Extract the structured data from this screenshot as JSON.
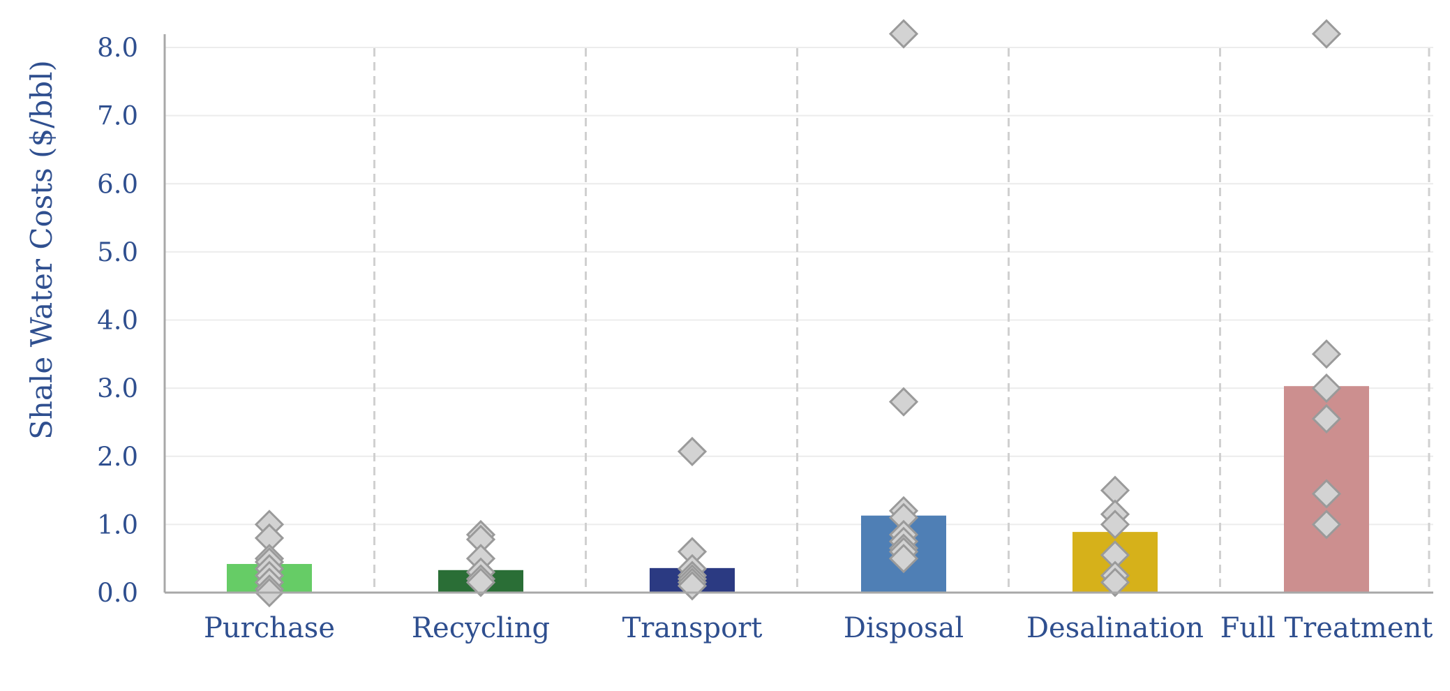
{
  "chart_data": {
    "type": "bar",
    "ylabel": "Shale Water Costs ($/bbl)",
    "xlabel": "",
    "ylim": [
      0,
      8.2
    ],
    "yticks": [
      0,
      1,
      2,
      3,
      4,
      5,
      6,
      7,
      8
    ],
    "ytick_labels": [
      "0.0",
      "1.0",
      "2.0",
      "3.0",
      "4.0",
      "5.0",
      "6.0",
      "7.0",
      "8.0"
    ],
    "grid": true,
    "categories": [
      "Purchase",
      "Recycling",
      "Transport",
      "Disposal",
      "Desalination",
      "Full Treatment"
    ],
    "values": [
      0.42,
      0.33,
      0.36,
      1.13,
      0.89,
      3.03
    ],
    "colors": [
      "#66cc66",
      "#2a6e36",
      "#2b3a82",
      "#4f7fb5",
      "#d6b11a",
      "#cc8f8f"
    ],
    "points": [
      [
        1.0,
        0.8,
        0.5,
        0.45,
        0.35,
        0.25,
        0.15,
        0.05,
        0.0
      ],
      [
        0.85,
        0.78,
        0.5,
        0.3,
        0.2,
        0.15
      ],
      [
        2.07,
        0.6,
        0.35,
        0.25,
        0.2,
        0.15,
        0.1
      ],
      [
        8.2,
        2.8,
        1.2,
        1.1,
        0.85,
        0.75,
        0.65,
        0.6,
        0.5
      ],
      [
        1.5,
        1.15,
        1.0,
        0.55,
        0.25,
        0.15
      ],
      [
        8.2,
        3.5,
        3.0,
        2.55,
        1.45,
        1.0
      ]
    ],
    "marker_color": "#d3d3d3",
    "marker_stroke": "#9a9a9a"
  }
}
